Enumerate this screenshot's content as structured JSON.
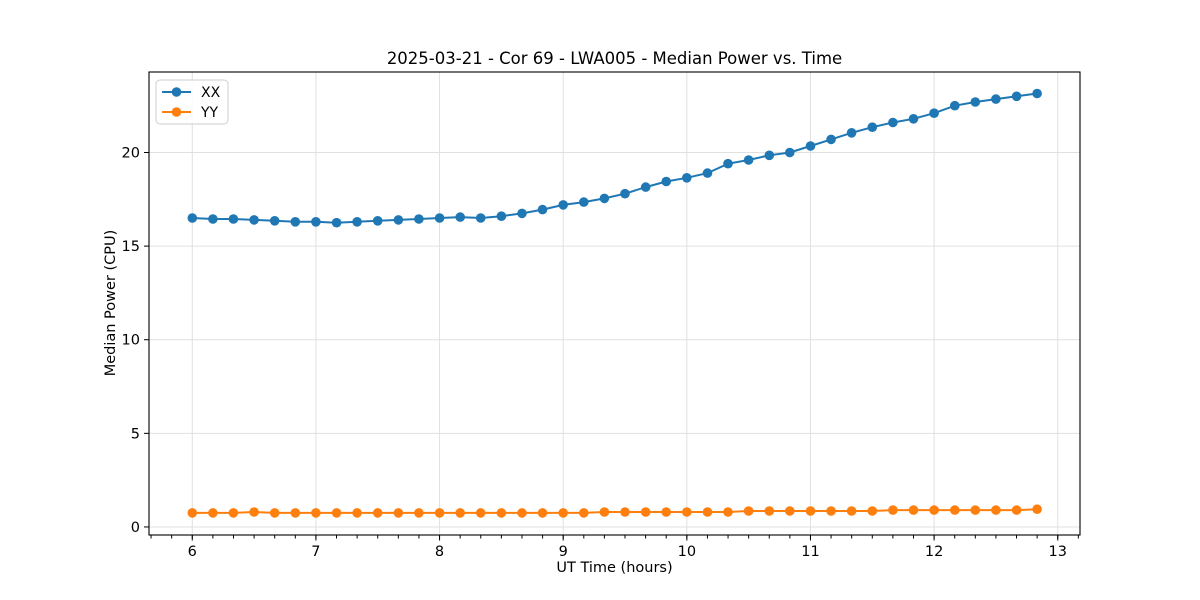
{
  "chart_data": {
    "type": "line",
    "title": "2025-03-21 - Cor 69 - LWA005 - Median Power vs. Time",
    "xlabel": "UT Time (hours)",
    "ylabel": "Median Power (CPU)",
    "xlim": [
      5.65,
      13.18
    ],
    "ylim": [
      -0.43,
      24.3
    ],
    "x_ticks": [
      6,
      7,
      8,
      9,
      10,
      11,
      12,
      13
    ],
    "y_ticks": [
      0,
      5,
      10,
      15,
      20
    ],
    "x_minor_step": 0.1666667,
    "grid": true,
    "grid_color": "#e0e0e0",
    "legend_position": "upper left",
    "x": [
      6.0,
      6.167,
      6.333,
      6.5,
      6.667,
      6.833,
      7.0,
      7.167,
      7.333,
      7.5,
      7.667,
      7.833,
      8.0,
      8.167,
      8.333,
      8.5,
      8.667,
      8.833,
      9.0,
      9.167,
      9.333,
      9.5,
      9.667,
      9.833,
      10.0,
      10.167,
      10.333,
      10.5,
      10.667,
      10.833,
      11.0,
      11.167,
      11.333,
      11.5,
      11.667,
      11.833,
      12.0,
      12.167,
      12.333,
      12.5,
      12.667,
      12.833
    ],
    "series": [
      {
        "name": "XX",
        "color": "#1f77b4",
        "values": [
          16.5,
          16.45,
          16.45,
          16.4,
          16.35,
          16.3,
          16.3,
          16.25,
          16.3,
          16.35,
          16.4,
          16.45,
          16.5,
          16.55,
          16.5,
          16.6,
          16.75,
          16.95,
          17.2,
          17.35,
          17.55,
          17.8,
          18.15,
          18.45,
          18.65,
          18.9,
          19.4,
          19.6,
          19.85,
          20.0,
          20.35,
          20.7,
          21.05,
          21.35,
          21.6,
          21.8,
          22.1,
          22.5,
          22.7,
          22.85,
          23.0,
          23.15
        ]
      },
      {
        "name": "YY",
        "color": "#ff7f0e",
        "values": [
          0.75,
          0.75,
          0.75,
          0.8,
          0.75,
          0.75,
          0.75,
          0.75,
          0.75,
          0.75,
          0.75,
          0.75,
          0.75,
          0.75,
          0.75,
          0.75,
          0.75,
          0.75,
          0.75,
          0.75,
          0.8,
          0.8,
          0.8,
          0.8,
          0.8,
          0.8,
          0.8,
          0.85,
          0.85,
          0.85,
          0.85,
          0.85,
          0.85,
          0.85,
          0.9,
          0.9,
          0.9,
          0.9,
          0.9,
          0.9,
          0.9,
          0.95
        ]
      }
    ]
  }
}
